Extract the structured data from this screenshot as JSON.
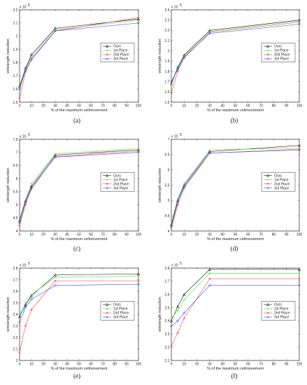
{
  "series_colors": [
    "#000000",
    "#33dd33",
    "#ff3333",
    "#3333ff"
  ],
  "chart_data": [
    {
      "type": "line",
      "caption": "(a)",
      "exponent": "x 10",
      "exponent_power": "5",
      "xlabel": "% of the maximum cellmovement",
      "ylabel": "wirelength reduction",
      "xlim": [
        0,
        100
      ],
      "ylim": [
        1.5,
        2.2
      ],
      "xticks": [
        0,
        10,
        20,
        30,
        40,
        50,
        60,
        70,
        80,
        90,
        100
      ],
      "yticks": [
        1.5,
        1.6,
        1.7,
        1.8,
        1.9,
        2.0,
        2.1,
        2.2
      ],
      "ytick_labels": [
        "1.5",
        "1.6",
        "1.7",
        "1.8",
        "1.9",
        "2",
        "2.1",
        "2.2"
      ],
      "x": [
        0,
        5,
        10,
        30,
        100
      ],
      "legend_position": "right",
      "series": [
        {
          "name": "Ours",
          "values": [
            1.62,
            1.76,
            1.86,
            2.06,
            2.13
          ]
        },
        {
          "name": "1st Place",
          "values": [
            1.61,
            1.75,
            1.85,
            2.05,
            2.12
          ]
        },
        {
          "name": "2nd Place",
          "values": [
            1.53,
            1.73,
            1.82,
            2.04,
            2.14
          ]
        },
        {
          "name": "3rd Place",
          "values": [
            1.6,
            1.74,
            1.83,
            2.04,
            2.1
          ]
        }
      ]
    },
    {
      "type": "line",
      "caption": "(b)",
      "exponent": "x 10",
      "exponent_power": "5",
      "xlabel": "% of the maximum cellmovement",
      "ylabel": "wirelength reduction",
      "xlim": [
        0,
        100
      ],
      "ylim": [
        1.5,
        2.4
      ],
      "xticks": [
        0,
        10,
        20,
        30,
        40,
        50,
        60,
        70,
        80,
        90,
        100
      ],
      "yticks": [
        1.5,
        1.6,
        1.7,
        1.8,
        1.9,
        2.0,
        2.1,
        2.2,
        2.3,
        2.4
      ],
      "ytick_labels": [
        "1.5",
        "1.6",
        "1.7",
        "1.8",
        "1.9",
        "2",
        "2.1",
        "2.2",
        "2.3",
        "2.4"
      ],
      "x": [
        0,
        5,
        10,
        30,
        100
      ],
      "legend_position": "right",
      "series": [
        {
          "name": "Ours",
          "values": [
            1.68,
            1.84,
            1.96,
            2.2,
            2.3
          ]
        },
        {
          "name": "1st Place",
          "values": [
            1.67,
            1.83,
            1.95,
            2.19,
            2.29
          ]
        },
        {
          "name": "2nd Place",
          "values": [
            1.59,
            1.8,
            1.93,
            2.18,
            2.28
          ]
        },
        {
          "name": "3rd Place",
          "values": [
            1.7,
            1.82,
            1.94,
            2.17,
            2.26
          ]
        }
      ]
    },
    {
      "type": "line",
      "caption": "(c)",
      "exponent": "x 10",
      "exponent_power": "5",
      "xlabel": "% of the maximum cellmovement",
      "ylabel": "wirelength reduction",
      "xlim": [
        0,
        100
      ],
      "ylim": [
        4,
        7.5
      ],
      "xticks": [
        0,
        10,
        20,
        30,
        40,
        50,
        60,
        70,
        80,
        90,
        100
      ],
      "yticks": [
        4,
        4.5,
        5,
        5.5,
        6,
        6.5,
        7,
        7.5
      ],
      "ytick_labels": [
        "4",
        "4.5",
        "5",
        "5.5",
        "6",
        "6.5",
        "7",
        "7.5"
      ],
      "x": [
        0,
        5,
        10,
        30,
        100
      ],
      "legend_position": "right",
      "series": [
        {
          "name": "Ours",
          "values": [
            4.4,
            5.15,
            5.7,
            6.9,
            7.1
          ]
        },
        {
          "name": "1st Place",
          "values": [
            4.45,
            5.2,
            5.8,
            6.95,
            7.15
          ]
        },
        {
          "name": "2nd Place",
          "values": [
            4.2,
            5.0,
            5.6,
            6.85,
            7.05
          ]
        },
        {
          "name": "3rd Place",
          "values": [
            4.3,
            5.1,
            5.65,
            6.82,
            7.0
          ]
        }
      ]
    },
    {
      "type": "line",
      "caption": "(d)",
      "exponent": "x 10",
      "exponent_power": "5",
      "xlabel": "% of the maximum cellmovement",
      "ylabel": "wirelength reduction",
      "xlim": [
        0,
        100
      ],
      "ylim": [
        4,
        7
      ],
      "xticks": [
        0,
        10,
        20,
        30,
        40,
        50,
        60,
        70,
        80,
        90,
        100
      ],
      "yticks": [
        4,
        4.5,
        5,
        5.5,
        6,
        6.5,
        7
      ],
      "ytick_labels": [
        "4",
        "4.5",
        "5",
        "5.5",
        "6",
        "6.5",
        "7"
      ],
      "x": [
        0,
        5,
        10,
        30,
        100
      ],
      "legend_position": "right",
      "series": [
        {
          "name": "Ours",
          "values": [
            4.2,
            5.0,
            5.5,
            6.6,
            6.8
          ]
        },
        {
          "name": "1st Place",
          "values": [
            4.25,
            5.05,
            5.55,
            6.65,
            6.72
          ]
        },
        {
          "name": "2nd Place",
          "values": [
            4.1,
            4.85,
            5.4,
            6.55,
            6.68
          ]
        },
        {
          "name": "3rd Place",
          "values": [
            4.15,
            4.95,
            5.45,
            6.55,
            6.65
          ]
        }
      ]
    },
    {
      "type": "line",
      "caption": "(e)",
      "exponent": "x 10",
      "exponent_power": "5",
      "xlabel": "% of the maximum cellmovement",
      "ylabel": "wirelength reduction",
      "xlim": [
        0,
        100
      ],
      "ylim": [
        2,
        2.8
      ],
      "xticks": [
        0,
        10,
        20,
        30,
        40,
        50,
        60,
        70,
        80,
        90,
        100
      ],
      "yticks": [
        2.0,
        2.1,
        2.2,
        2.3,
        2.4,
        2.5,
        2.6,
        2.7,
        2.8
      ],
      "ytick_labels": [
        "2",
        "2.1",
        "2.2",
        "2.3",
        "2.4",
        "2.5",
        "2.6",
        "2.7",
        "2.8"
      ],
      "x": [
        0,
        5,
        10,
        30,
        100
      ],
      "legend_position": "right",
      "series": [
        {
          "name": "Ours",
          "values": [
            2.38,
            2.48,
            2.56,
            2.74,
            2.75
          ]
        },
        {
          "name": "1st Place",
          "values": [
            2.4,
            2.5,
            2.57,
            2.72,
            2.73
          ]
        },
        {
          "name": "2nd Place",
          "values": [
            2.07,
            2.3,
            2.44,
            2.69,
            2.69
          ]
        },
        {
          "name": "3rd Place",
          "values": [
            2.33,
            2.46,
            2.53,
            2.65,
            2.66
          ]
        }
      ]
    },
    {
      "type": "line",
      "caption": "(f)",
      "exponent": "x 10",
      "exponent_power": "5",
      "xlabel": "% of the maximum cellmovement",
      "ylabel": "wirelength reduction",
      "xlim": [
        0,
        100
      ],
      "ylim": [
        2.1,
        2.8
      ],
      "xticks": [
        0,
        10,
        20,
        30,
        40,
        50,
        60,
        70,
        80,
        90,
        100
      ],
      "yticks": [
        2.1,
        2.2,
        2.3,
        2.4,
        2.5,
        2.6,
        2.7,
        2.8
      ],
      "ytick_labels": [
        "2.1",
        "2.2",
        "2.3",
        "2.4",
        "2.5",
        "2.6",
        "2.7",
        "2.8"
      ],
      "x": [
        0,
        5,
        10,
        30,
        100
      ],
      "legend_position": "right",
      "series": [
        {
          "name": "Ours",
          "values": [
            2.4,
            2.51,
            2.6,
            2.79,
            2.79
          ]
        },
        {
          "name": "1st Place",
          "values": [
            2.42,
            2.48,
            2.56,
            2.76,
            2.76
          ]
        },
        {
          "name": "2nd Place",
          "values": [
            2.21,
            2.31,
            2.42,
            2.72,
            2.72
          ]
        },
        {
          "name": "3rd Place",
          "values": [
            2.36,
            2.4,
            2.46,
            2.67,
            2.67
          ]
        }
      ]
    }
  ]
}
